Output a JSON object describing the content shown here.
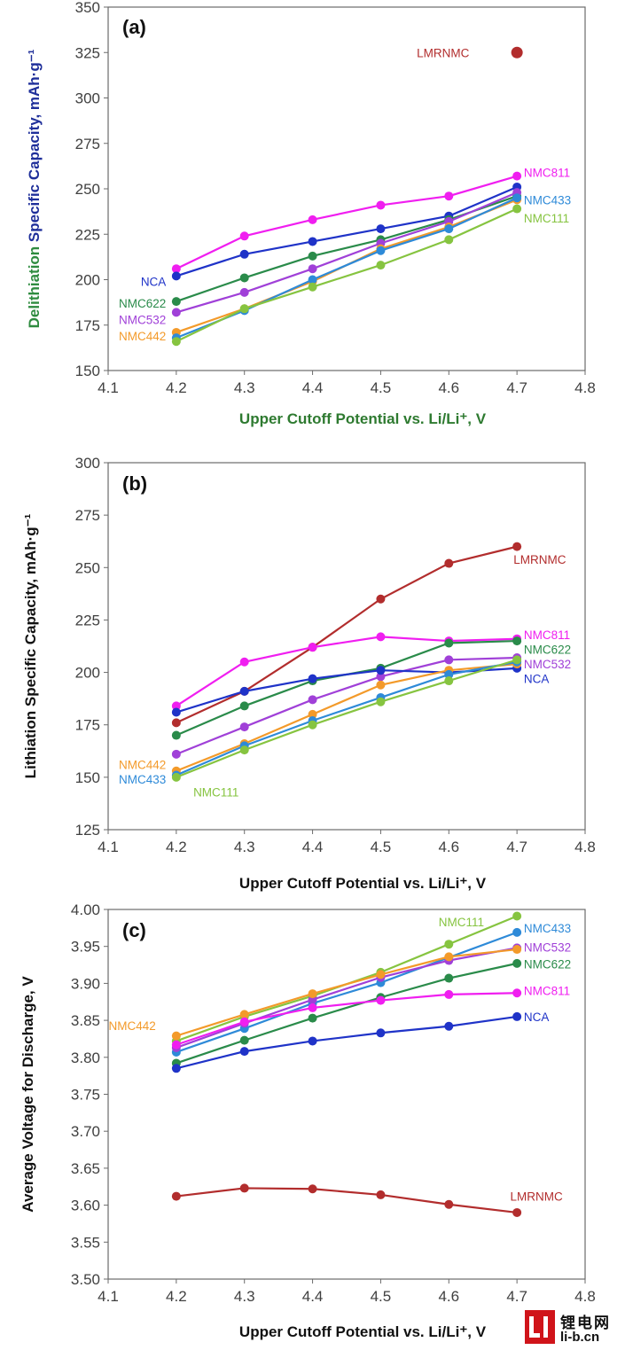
{
  "watermark": {
    "cn": "锂电网",
    "url": "li-b.cn"
  },
  "chart_data": [
    {
      "type": "line",
      "panel": "(a)",
      "xlabel": "Upper Cutoff Potential vs. Li/Li⁺, V",
      "ylabel_parts": [
        "Delithiation",
        "Specific Capacity, mAh·g⁻¹"
      ],
      "xlim": [
        4.1,
        4.8
      ],
      "ylim": [
        150,
        350
      ],
      "xticks": [
        "4.1",
        "4.2",
        "4.3",
        "4.4",
        "4.5",
        "4.6",
        "4.7",
        "4.8"
      ],
      "yticks": [
        "150",
        "175",
        "200",
        "225",
        "250",
        "275",
        "300",
        "325",
        "350"
      ],
      "grid": false,
      "series": [
        {
          "name": "LMRNMC",
          "color": "#b22d2d",
          "x": [
            4.7
          ],
          "y": [
            325
          ]
        },
        {
          "name": "NMC811",
          "color": "#f01ef0",
          "x": [
            4.2,
            4.3,
            4.4,
            4.5,
            4.6,
            4.7
          ],
          "y": [
            206,
            224,
            233,
            241,
            246,
            257
          ]
        },
        {
          "name": "NCA",
          "color": "#1f33c8",
          "x": [
            4.2,
            4.3,
            4.4,
            4.5,
            4.6,
            4.7
          ],
          "y": [
            202,
            214,
            221,
            228,
            235,
            251
          ]
        },
        {
          "name": "NMC622",
          "color": "#2a8b4a",
          "x": [
            4.2,
            4.3,
            4.4,
            4.5,
            4.6,
            4.7
          ],
          "y": [
            188,
            201,
            213,
            222,
            233,
            246
          ]
        },
        {
          "name": "NMC532",
          "color": "#a040d8",
          "x": [
            4.2,
            4.3,
            4.4,
            4.5,
            4.6,
            4.7
          ],
          "y": [
            182,
            193,
            206,
            220,
            232,
            248
          ]
        },
        {
          "name": "NMC442",
          "color": "#f39a2a",
          "x": [
            4.2,
            4.3,
            4.4,
            4.5,
            4.6,
            4.7
          ],
          "y": [
            171,
            184,
            199,
            217,
            229,
            244
          ]
        },
        {
          "name": "NMC433",
          "color": "#2e8ad8",
          "x": [
            4.2,
            4.3,
            4.4,
            4.5,
            4.6,
            4.7
          ],
          "y": [
            168,
            183,
            200,
            216,
            228,
            245
          ]
        },
        {
          "name": "NMC111",
          "color": "#86c440",
          "x": [
            4.2,
            4.3,
            4.4,
            4.5,
            4.6,
            4.7
          ],
          "y": [
            166,
            184,
            196,
            208,
            222,
            239
          ]
        }
      ],
      "labels": [
        {
          "text": "LMRNMC",
          "color": "#b22d2d",
          "x": 4.63,
          "y": 325
        },
        {
          "text": "NMC811",
          "color": "#f01ef0",
          "x": 4.71,
          "y": 259
        },
        {
          "text": "NMC433",
          "color": "#2e8ad8",
          "x": 4.71,
          "y": 244
        },
        {
          "text": "NMC111",
          "color": "#86c440",
          "x": 4.71,
          "y": 234
        },
        {
          "text": "NCA",
          "color": "#1f33c8",
          "x": 4.185,
          "y": 199
        },
        {
          "text": "NMC622",
          "color": "#2a8b4a",
          "x": 4.185,
          "y": 187
        },
        {
          "text": "NMC532",
          "color": "#a040d8",
          "x": 4.185,
          "y": 178
        },
        {
          "text": "NMC442",
          "color": "#f39a2a",
          "x": 4.185,
          "y": 169
        }
      ]
    },
    {
      "type": "line",
      "panel": "(b)",
      "xlabel": "Upper Cutoff Potential vs. Li/Li⁺, V",
      "ylabel": "Lithiation Specific Capacity, mAh·g⁻¹",
      "xlim": [
        4.1,
        4.8
      ],
      "ylim": [
        125,
        300
      ],
      "xticks": [
        "4.1",
        "4.2",
        "4.3",
        "4.4",
        "4.5",
        "4.6",
        "4.7",
        "4.8"
      ],
      "yticks": [
        "125",
        "150",
        "175",
        "200",
        "225",
        "250",
        "275",
        "300"
      ],
      "grid": false,
      "series": [
        {
          "name": "LMRNMC",
          "color": "#b22d2d",
          "x": [
            4.2,
            4.3,
            4.4,
            4.5,
            4.6,
            4.7
          ],
          "y": [
            176,
            191,
            212,
            235,
            252,
            260
          ]
        },
        {
          "name": "NMC811",
          "color": "#f01ef0",
          "x": [
            4.2,
            4.3,
            4.4,
            4.5,
            4.6,
            4.7
          ],
          "y": [
            184,
            205,
            212,
            217,
            215,
            216
          ]
        },
        {
          "name": "NMC622",
          "color": "#2a8b4a",
          "x": [
            4.2,
            4.3,
            4.4,
            4.5,
            4.6,
            4.7
          ],
          "y": [
            170,
            184,
            196,
            202,
            214,
            215
          ]
        },
        {
          "name": "NMC532",
          "color": "#a040d8",
          "x": [
            4.2,
            4.3,
            4.4,
            4.5,
            4.6,
            4.7
          ],
          "y": [
            161,
            174,
            187,
            198,
            206,
            207
          ]
        },
        {
          "name": "NCA",
          "color": "#1f33c8",
          "x": [
            4.2,
            4.3,
            4.4,
            4.5,
            4.6,
            4.7
          ],
          "y": [
            181,
            191,
            197,
            201,
            200,
            202
          ]
        },
        {
          "name": "NMC442",
          "color": "#f39a2a",
          "x": [
            4.2,
            4.3,
            4.4,
            4.5,
            4.6,
            4.7
          ],
          "y": [
            153,
            166,
            180,
            194,
            201,
            204
          ]
        },
        {
          "name": "NMC433",
          "color": "#2e8ad8",
          "x": [
            4.2,
            4.3,
            4.4,
            4.5,
            4.6,
            4.7
          ],
          "y": [
            151,
            165,
            177,
            188,
            199,
            205
          ]
        },
        {
          "name": "NMC111",
          "color": "#86c440",
          "x": [
            4.2,
            4.3,
            4.4,
            4.5,
            4.6,
            4.7
          ],
          "y": [
            150,
            163,
            175,
            186,
            196,
            206
          ]
        }
      ],
      "labels": [
        {
          "text": "LMRNMC",
          "color": "#b22d2d",
          "x": 4.695,
          "y": 254
        },
        {
          "text": "NMC811",
          "color": "#f01ef0",
          "x": 4.71,
          "y": 218
        },
        {
          "text": "NMC622",
          "color": "#2a8b4a",
          "x": 4.71,
          "y": 211
        },
        {
          "text": "NMC532",
          "color": "#a040d8",
          "x": 4.71,
          "y": 204
        },
        {
          "text": "NCA",
          "color": "#1f33c8",
          "x": 4.71,
          "y": 197
        },
        {
          "text": "NMC442",
          "color": "#f39a2a",
          "x": 4.185,
          "y": 156
        },
        {
          "text": "NMC433",
          "color": "#2e8ad8",
          "x": 4.185,
          "y": 149
        },
        {
          "text": "NMC111",
          "color": "#86c440",
          "x": 4.225,
          "y": 143
        }
      ]
    },
    {
      "type": "line",
      "panel": "(c)",
      "xlabel": "Upper Cutoff Potential vs. Li/Li⁺, V",
      "ylabel": "Average Voltage for Discharge, V",
      "xlim": [
        4.1,
        4.8
      ],
      "ylim": [
        3.5,
        4.0
      ],
      "xticks": [
        "4.1",
        "4.2",
        "4.3",
        "4.4",
        "4.5",
        "4.6",
        "4.7",
        "4.8"
      ],
      "yticks": [
        "3.50",
        "3.55",
        "3.60",
        "3.65",
        "3.70",
        "3.75",
        "3.80",
        "3.85",
        "3.90",
        "3.95",
        "4.00"
      ],
      "grid": false,
      "series": [
        {
          "name": "NMC111",
          "color": "#86c440",
          "x": [
            4.2,
            4.3,
            4.4,
            4.5,
            4.6,
            4.7
          ],
          "y": [
            3.822,
            3.855,
            3.883,
            3.915,
            3.953,
            3.991
          ]
        },
        {
          "name": "NMC433",
          "color": "#2e8ad8",
          "x": [
            4.2,
            4.3,
            4.4,
            4.5,
            4.6,
            4.7
          ],
          "y": [
            3.807,
            3.839,
            3.873,
            3.901,
            3.935,
            3.969
          ]
        },
        {
          "name": "NMC532",
          "color": "#a040d8",
          "x": [
            4.2,
            4.3,
            4.4,
            4.5,
            4.6,
            4.7
          ],
          "y": [
            3.813,
            3.846,
            3.878,
            3.908,
            3.931,
            3.948
          ]
        },
        {
          "name": "NMC442",
          "color": "#f39a2a",
          "x": [
            4.2,
            4.3,
            4.4,
            4.5,
            4.6,
            4.7
          ],
          "y": [
            3.829,
            3.858,
            3.886,
            3.912,
            3.936,
            3.946
          ]
        },
        {
          "name": "NMC622",
          "color": "#2a8b4a",
          "x": [
            4.2,
            4.3,
            4.4,
            4.5,
            4.6,
            4.7
          ],
          "y": [
            3.792,
            3.823,
            3.853,
            3.881,
            3.907,
            3.927
          ]
        },
        {
          "name": "NMC811",
          "color": "#f01ef0",
          "x": [
            4.2,
            4.3,
            4.4,
            4.5,
            4.6,
            4.7
          ],
          "y": [
            3.817,
            3.848,
            3.867,
            3.877,
            3.885,
            3.887
          ]
        },
        {
          "name": "NCA",
          "color": "#1f33c8",
          "x": [
            4.2,
            4.3,
            4.4,
            4.5,
            4.6,
            4.7
          ],
          "y": [
            3.785,
            3.808,
            3.822,
            3.833,
            3.842,
            3.855
          ]
        },
        {
          "name": "LMRNMC",
          "color": "#b22d2d",
          "x": [
            4.2,
            4.3,
            4.4,
            4.5,
            4.6,
            4.7
          ],
          "y": [
            3.612,
            3.623,
            3.622,
            3.614,
            3.601,
            3.59
          ]
        }
      ],
      "labels": [
        {
          "text": "NMC111",
          "color": "#86c440",
          "x": 4.585,
          "y": 3.983
        },
        {
          "text": "NMC433",
          "color": "#2e8ad8",
          "x": 4.71,
          "y": 3.975
        },
        {
          "text": "NMC532",
          "color": "#a040d8",
          "x": 4.71,
          "y": 3.949
        },
        {
          "text": "NMC622",
          "color": "#2a8b4a",
          "x": 4.71,
          "y": 3.926
        },
        {
          "text": "NMC811",
          "color": "#f01ef0",
          "x": 4.71,
          "y": 3.89
        },
        {
          "text": "NCA",
          "color": "#1f33c8",
          "x": 4.71,
          "y": 3.855
        },
        {
          "text": "NMC442",
          "color": "#f39a2a",
          "x": 4.17,
          "y": 3.843
        },
        {
          "text": "LMRNMC",
          "color": "#b22d2d",
          "x": 4.69,
          "y": 3.612
        }
      ]
    }
  ]
}
